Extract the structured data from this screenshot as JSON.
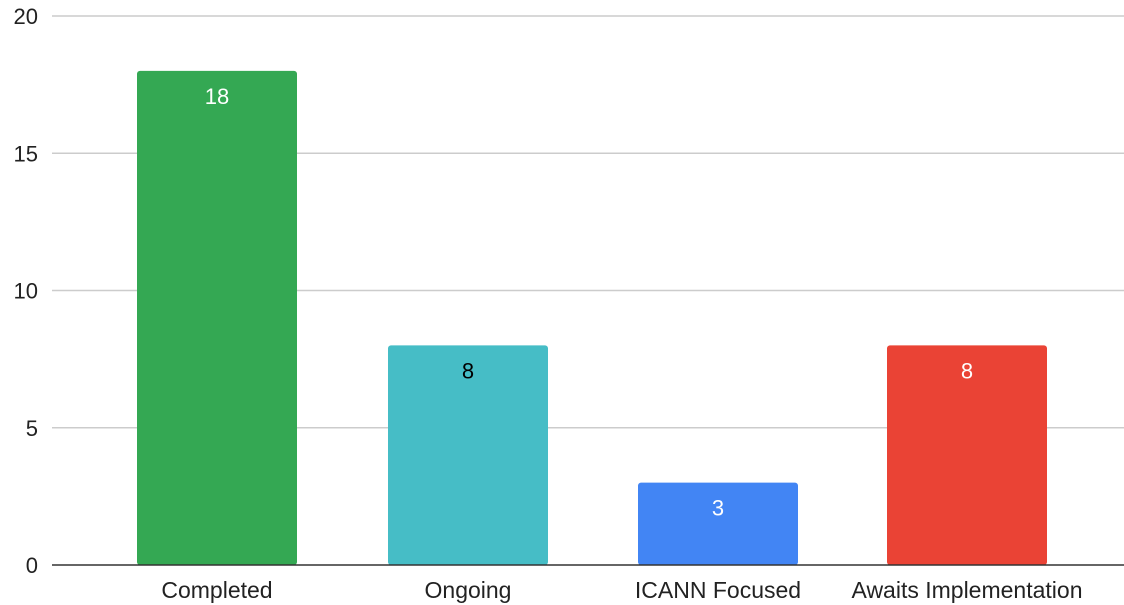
{
  "chart_data": {
    "type": "bar",
    "categories": [
      "Completed",
      "Ongoing",
      "ICANN Focused",
      "Awaits Implementation"
    ],
    "values": [
      18,
      8,
      3,
      8
    ],
    "data_labels": [
      "18",
      "8",
      "3",
      "8"
    ],
    "bar_colors": [
      "#34a853",
      "#46bdc6",
      "#4285f4",
      "#ea4335"
    ],
    "data_label_colors": [
      "#ffffff",
      "#000000",
      "#ffffff",
      "#ffffff"
    ],
    "ylim": [
      0,
      20
    ],
    "yticks": [
      0,
      5,
      10,
      15,
      20
    ],
    "ytick_labels": [
      "0",
      "5",
      "10",
      "15",
      "20"
    ],
    "grid": true,
    "title": "",
    "xlabel": "",
    "ylabel": ""
  }
}
